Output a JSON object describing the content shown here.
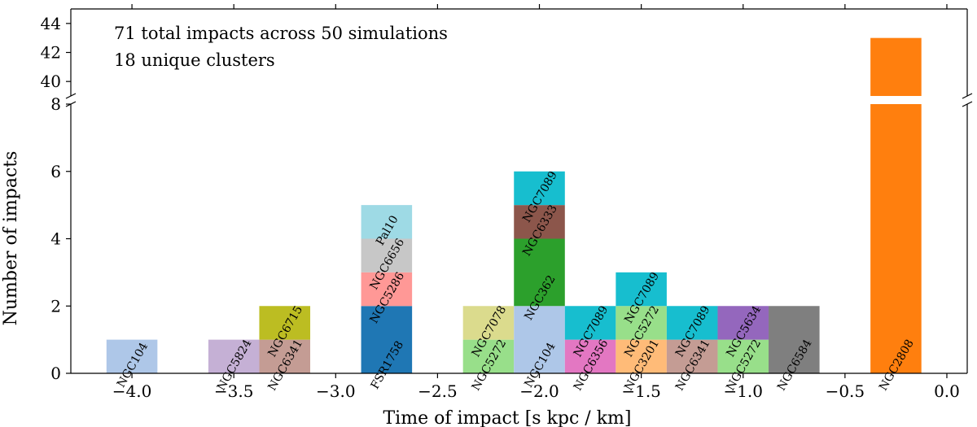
{
  "chart_data": {
    "type": "bar",
    "stacked": true,
    "broken_y_axis": true,
    "xlabel": "Time of impact [s kpc / km]",
    "ylabel": "Number of impacts",
    "annotations": [
      "71 total impacts across 50 simulations",
      "18 unique clusters"
    ],
    "xlim": [
      -4.3,
      0.1
    ],
    "ylim_lower": [
      0,
      8
    ],
    "ylim_upper": [
      39,
      45
    ],
    "bin_width": 0.25,
    "xticks": [
      -4.0,
      -3.5,
      -3.0,
      -2.5,
      -2.0,
      -1.5,
      -1.0,
      -0.5,
      0.0
    ],
    "xtick_labels": [
      "−4.0",
      "−3.5",
      "−3.0",
      "−2.5",
      "−2.0",
      "−1.5",
      "−1.0",
      "−0.5",
      "0.0"
    ],
    "yticks_lower": [
      0,
      2,
      4,
      6,
      8
    ],
    "ytick_labels_lower": [
      "0",
      "2",
      "4",
      "6",
      "8"
    ],
    "yticks_upper": [
      40,
      42,
      44
    ],
    "ytick_labels_upper": [
      "40",
      "42",
      "44"
    ],
    "bins": [
      {
        "center": -4.0,
        "segments": [
          {
            "cluster": "NGC104",
            "count": 1,
            "color": "#aec7e8"
          }
        ]
      },
      {
        "center": -3.5,
        "segments": [
          {
            "cluster": "NGC5824",
            "count": 1,
            "color": "#c5b0d5"
          }
        ]
      },
      {
        "center": -3.25,
        "segments": [
          {
            "cluster": "NGC6341",
            "count": 1,
            "color": "#c49c94"
          },
          {
            "cluster": "NGC6715",
            "count": 1,
            "color": "#bcbd22"
          }
        ]
      },
      {
        "center": -2.75,
        "segments": [
          {
            "cluster": "FSR1758",
            "count": 2,
            "color": "#1f77b4"
          },
          {
            "cluster": "NGC5286",
            "count": 1,
            "color": "#ff9896"
          },
          {
            "cluster": "NGC6656",
            "count": 1,
            "color": "#c7c7c7"
          },
          {
            "cluster": "Pal10",
            "count": 1,
            "color": "#9edae5"
          }
        ]
      },
      {
        "center": -2.25,
        "segments": [
          {
            "cluster": "NGC5272",
            "count": 1,
            "color": "#98df8a"
          },
          {
            "cluster": "NGC7078",
            "count": 1,
            "color": "#dbdb8d"
          }
        ]
      },
      {
        "center": -2.0,
        "segments": [
          {
            "cluster": "NGC104",
            "count": 2,
            "color": "#aec7e8"
          },
          {
            "cluster": "NGC362",
            "count": 2,
            "color": "#2ca02c"
          },
          {
            "cluster": "NGC6333",
            "count": 1,
            "color": "#8c564b"
          },
          {
            "cluster": "NGC7089",
            "count": 1,
            "color": "#17becf"
          }
        ]
      },
      {
        "center": -1.75,
        "segments": [
          {
            "cluster": "NGC6356",
            "count": 1,
            "color": "#e377c2"
          },
          {
            "cluster": "NGC7089",
            "count": 1,
            "color": "#17becf"
          }
        ]
      },
      {
        "center": -1.5,
        "segments": [
          {
            "cluster": "NGC3201",
            "count": 1,
            "color": "#ffbb78"
          },
          {
            "cluster": "NGC5272",
            "count": 1,
            "color": "#98df8a"
          },
          {
            "cluster": "NGC7089",
            "count": 1,
            "color": "#17becf"
          }
        ]
      },
      {
        "center": -1.25,
        "segments": [
          {
            "cluster": "NGC6341",
            "count": 1,
            "color": "#c49c94"
          },
          {
            "cluster": "NGC7089",
            "count": 1,
            "color": "#17becf"
          }
        ]
      },
      {
        "center": -1.0,
        "segments": [
          {
            "cluster": "NGC5272",
            "count": 1,
            "color": "#98df8a"
          },
          {
            "cluster": "NGC5634",
            "count": 1,
            "color": "#9467bd"
          }
        ]
      },
      {
        "center": -0.75,
        "segments": [
          {
            "cluster": "NGC6584",
            "count": 2,
            "color": "#7f7f7f"
          }
        ]
      },
      {
        "center": -0.25,
        "segments": [
          {
            "cluster": "NGC2808",
            "count": 43,
            "color": "#ff7f0e"
          }
        ]
      }
    ]
  }
}
